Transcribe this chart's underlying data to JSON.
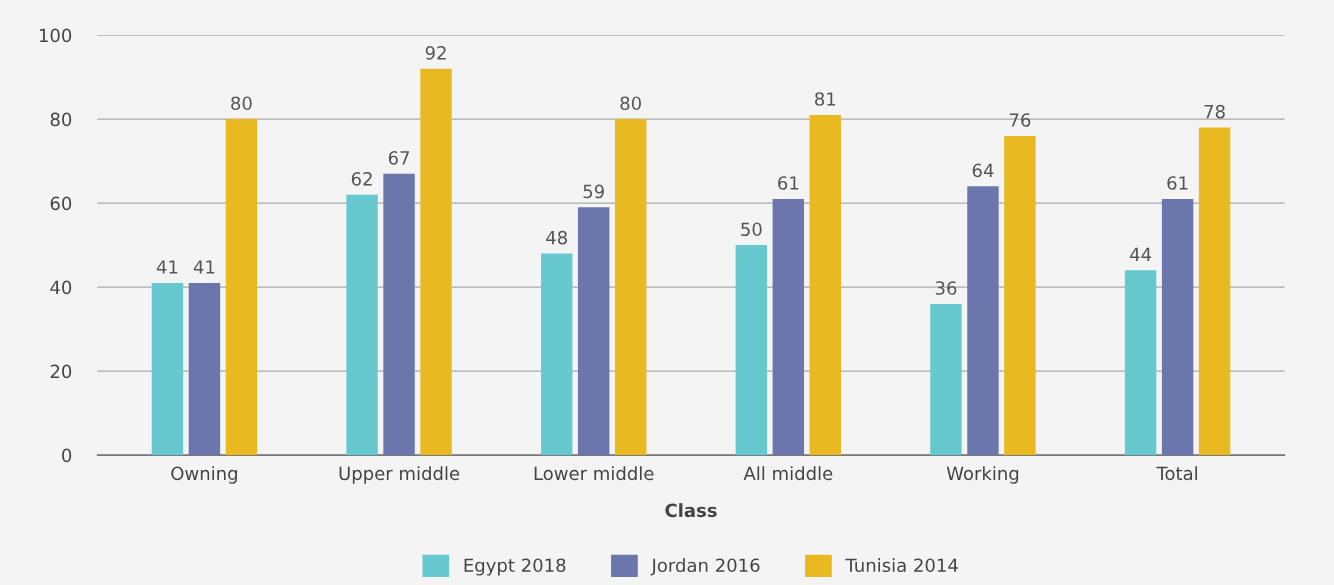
{
  "chart_data": {
    "type": "bar",
    "xlabel": "Class",
    "categories": [
      "Owning",
      "Upper middle",
      "Lower middle",
      "All middle",
      "Working",
      "Total"
    ],
    "series": [
      {
        "name": "Egypt 2018",
        "color": "#67c8d0",
        "values": [
          41,
          62,
          48,
          50,
          36,
          44
        ]
      },
      {
        "name": "Jordan 2016",
        "color": "#6b76ad",
        "values": [
          41,
          67,
          59,
          61,
          64,
          61
        ]
      },
      {
        "name": "Tunisia 2014",
        "color": "#e8b920",
        "values": [
          80,
          92,
          80,
          81,
          76,
          78
        ]
      }
    ],
    "ylim": [
      0,
      100
    ],
    "yticks": [
      0,
      20,
      40,
      60,
      80,
      100
    ],
    "grid": "y",
    "legend": "bottom",
    "data_labels": true
  }
}
